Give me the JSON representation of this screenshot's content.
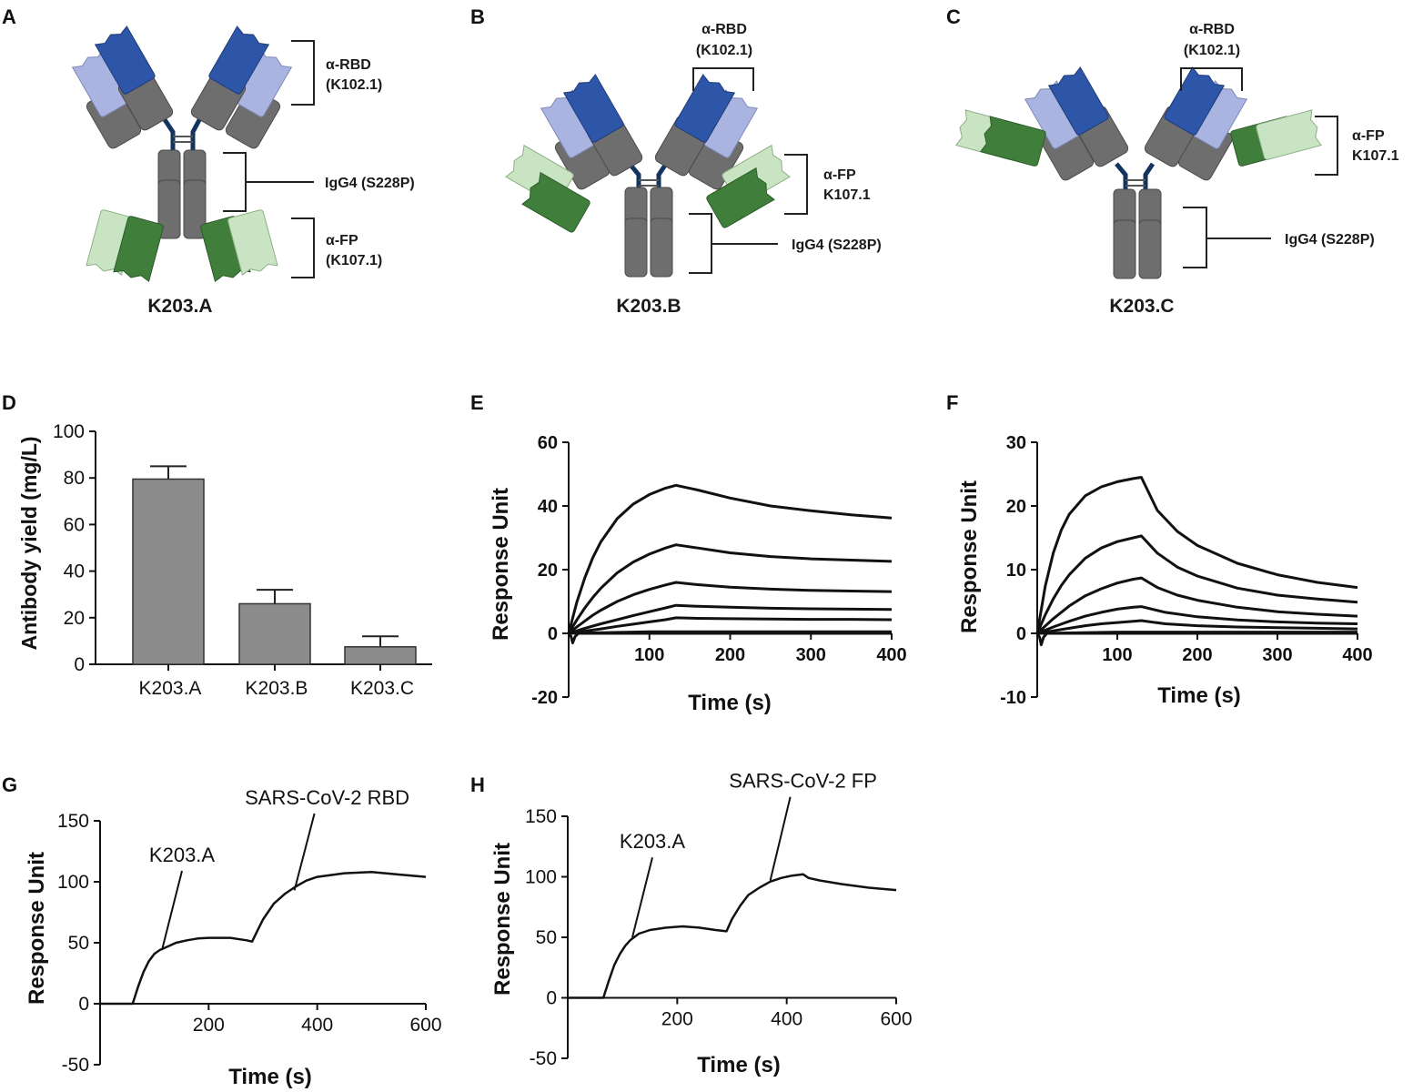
{
  "panels": {
    "A": {
      "letter": "A",
      "name": "K203.A",
      "rbd_label_1": "α-RBD",
      "rbd_label_2": "(K102.1)",
      "fc_label": "IgG4 (S228P)",
      "fp_label_1": "α-FP",
      "fp_label_2": "(K107.1)"
    },
    "B": {
      "letter": "B",
      "name": "K203.B",
      "rbd_label_1": "α-RBD",
      "rbd_label_2": "(K102.1)",
      "fc_label": "IgG4 (S228P)",
      "fp_label_1": "α-FP",
      "fp_label_2": "K107.1"
    },
    "C": {
      "letter": "C",
      "name": "K203.C",
      "rbd_label_1": "α-RBD",
      "rbd_label_2": "(K102.1)",
      "fc_label": "IgG4 (S228P)",
      "fp_label_1": "α-FP",
      "fp_label_2": "K107.1"
    },
    "D": {
      "letter": "D"
    },
    "E": {
      "letter": "E"
    },
    "F": {
      "letter": "F"
    },
    "G": {
      "letter": "G"
    },
    "H": {
      "letter": "H"
    }
  },
  "colors": {
    "vh_rbd": "#2e56a8",
    "vl_rbd": "#a9b4e0",
    "vh_fp": "#3f7f3b",
    "vl_fp": "#c9e4c2",
    "constant": "#6e6e6e",
    "hinge": "#13345e",
    "bar": "#8c8c8c",
    "line": "#111111"
  },
  "chart_data": [
    {
      "panel": "D",
      "type": "bar",
      "categories": [
        "K203.A",
        "K203.B",
        "K203.C"
      ],
      "values": [
        79.5,
        26,
        7.5
      ],
      "errors": [
        5.5,
        6,
        4.5
      ],
      "ylabel": "Antibody yield (mg/L)",
      "xlabel": "",
      "ylim": [
        0,
        100
      ],
      "yticks": [
        "0",
        "20",
        "40",
        "60",
        "80",
        "100"
      ]
    },
    {
      "panel": "E",
      "type": "line",
      "xlabel": "Time (s)",
      "ylabel": "Response Unit",
      "xlim": [
        0,
        400
      ],
      "ylim": [
        -20,
        60
      ],
      "xticks": [
        "100",
        "200",
        "300",
        "400"
      ],
      "yticks": [
        "-20",
        "0",
        "20",
        "40",
        "60"
      ],
      "series": [
        {
          "x": [
            0,
            10,
            20,
            30,
            40,
            60,
            80,
            100,
            120,
            133,
            160,
            200,
            250,
            300,
            350,
            400
          ],
          "y": [
            0,
            9.7,
            17.5,
            23.8,
            28.8,
            36,
            40.6,
            43.6,
            45.6,
            46.5,
            45,
            42.5,
            40,
            38.5,
            37.2,
            36.2
          ]
        },
        {
          "x": [
            0,
            10,
            20,
            30,
            40,
            60,
            80,
            100,
            120,
            133,
            160,
            200,
            250,
            300,
            350,
            400
          ],
          "y": [
            0,
            4.2,
            8,
            11.3,
            14.2,
            19,
            22.4,
            24.9,
            26.8,
            27.8,
            26.8,
            25.3,
            24.1,
            23.4,
            23,
            22.6
          ]
        },
        {
          "x": [
            0,
            10,
            20,
            30,
            40,
            60,
            80,
            100,
            120,
            133,
            160,
            200,
            250,
            300,
            350,
            400
          ],
          "y": [
            0,
            2,
            3.9,
            5.7,
            7.3,
            10,
            12.1,
            13.8,
            15.2,
            16,
            15.3,
            14.5,
            13.9,
            13.5,
            13.3,
            13.1
          ]
        },
        {
          "x": [
            0,
            20,
            40,
            60,
            80,
            100,
            120,
            133,
            160,
            200,
            250,
            300,
            350,
            400
          ],
          "y": [
            0,
            1.6,
            3,
            4.3,
            5.6,
            6.8,
            8,
            8.8,
            8.5,
            8.2,
            7.9,
            7.7,
            7.6,
            7.5
          ]
        },
        {
          "x": [
            0,
            20,
            40,
            60,
            80,
            100,
            120,
            133,
            160,
            200,
            250,
            300,
            350,
            400
          ],
          "y": [
            0,
            0.7,
            1.4,
            2.2,
            2.9,
            3.6,
            4.3,
            4.9,
            4.7,
            4.6,
            4.5,
            4.4,
            4.4,
            4.3
          ]
        },
        {
          "x": [
            0,
            100,
            200,
            300,
            400
          ],
          "y": [
            0,
            0.5,
            0.5,
            0.5,
            0.5
          ]
        },
        {
          "x": [
            0,
            3,
            5,
            8,
            12,
            400
          ],
          "y": [
            0,
            -1,
            -3,
            -1,
            0,
            0
          ]
        }
      ]
    },
    {
      "panel": "F",
      "type": "line",
      "xlabel": "Time (s)",
      "ylabel": "Response Unit",
      "xlim": [
        0,
        400
      ],
      "ylim": [
        -10,
        30
      ],
      "xticks": [
        "100",
        "200",
        "300",
        "400"
      ],
      "yticks": [
        "-10",
        "0",
        "10",
        "20",
        "30"
      ],
      "series": [
        {
          "x": [
            0,
            10,
            20,
            30,
            40,
            60,
            80,
            100,
            120,
            130,
            150,
            175,
            200,
            250,
            300,
            350,
            400
          ],
          "y": [
            0,
            7.4,
            12.6,
            16.2,
            18.7,
            21.6,
            23,
            23.8,
            24.3,
            24.5,
            19.3,
            16,
            13.8,
            11,
            9.2,
            8,
            7.2
          ]
        },
        {
          "x": [
            0,
            10,
            20,
            30,
            40,
            60,
            80,
            100,
            120,
            130,
            150,
            175,
            200,
            250,
            300,
            350,
            400
          ],
          "y": [
            0,
            2.9,
            5.4,
            7.5,
            9.2,
            11.8,
            13.4,
            14.4,
            15,
            15.3,
            12.6,
            10.4,
            9,
            7.1,
            6,
            5.4,
            4.9
          ]
        },
        {
          "x": [
            0,
            20,
            40,
            60,
            80,
            100,
            120,
            130,
            150,
            175,
            200,
            250,
            300,
            350,
            400
          ],
          "y": [
            0,
            2.3,
            4.3,
            5.9,
            7,
            7.9,
            8.5,
            8.7,
            7.2,
            6,
            5.2,
            4.1,
            3.4,
            3,
            2.7
          ]
        },
        {
          "x": [
            0,
            20,
            40,
            60,
            80,
            100,
            120,
            130,
            160,
            200,
            250,
            300,
            350,
            400
          ],
          "y": [
            0,
            1,
            1.9,
            2.7,
            3.3,
            3.8,
            4.1,
            4.2,
            3.3,
            2.6,
            2.1,
            1.8,
            1.6,
            1.5
          ]
        },
        {
          "x": [
            0,
            20,
            40,
            60,
            80,
            100,
            120,
            130,
            160,
            200,
            250,
            300,
            350,
            400
          ],
          "y": [
            0,
            0.4,
            0.8,
            1.2,
            1.5,
            1.7,
            1.9,
            2,
            1.5,
            1.2,
            1,
            0.9,
            0.8,
            0.7
          ]
        },
        {
          "x": [
            0,
            100,
            200,
            300,
            400
          ],
          "y": [
            0,
            0.2,
            0.2,
            0.2,
            0.2
          ]
        },
        {
          "x": [
            0,
            3,
            5,
            8,
            12,
            400
          ],
          "y": [
            0,
            -0.6,
            -1.8,
            -0.6,
            0,
            0
          ]
        }
      ]
    },
    {
      "panel": "G",
      "type": "line",
      "xlabel": "Time (s)",
      "ylabel": "Response Unit",
      "xlim": [
        0,
        600
      ],
      "ylim": [
        -50,
        150
      ],
      "xticks": [
        "200",
        "400",
        "600"
      ],
      "yticks": [
        "-50",
        "0",
        "50",
        "100",
        "150"
      ],
      "annotations": [
        {
          "text": "K203.A",
          "x": 114,
          "y": 44,
          "label_y": 103
        },
        {
          "text": "SARS-CoV-2  RBD",
          "x": 358,
          "y": 93,
          "label_y": 150
        }
      ],
      "series": [
        {
          "x": [
            0,
            60,
            70,
            80,
            90,
            100,
            110,
            120,
            140,
            160,
            180,
            200,
            240,
            270,
            280,
            290,
            300,
            320,
            340,
            360,
            380,
            400,
            450,
            500,
            550,
            600
          ],
          "y": [
            0,
            0,
            14,
            26,
            35,
            41,
            44,
            46,
            50,
            52,
            53.5,
            54,
            54,
            52,
            51,
            60,
            69,
            82,
            90,
            96,
            101,
            104,
            107,
            108,
            106,
            104
          ]
        }
      ]
    },
    {
      "panel": "H",
      "type": "line",
      "xlabel": "Time (s)",
      "ylabel": "Response Unit",
      "xlim": [
        0,
        600
      ],
      "ylim": [
        -50,
        150
      ],
      "xticks": [
        "200",
        "400",
        "600"
      ],
      "yticks": [
        "-50",
        "0",
        "50",
        "100",
        "150"
      ],
      "annotations": [
        {
          "text": "K203.A",
          "x": 118,
          "y": 50,
          "label_y": 110
        },
        {
          "text": "SARS-CoV-2  FP",
          "x": 370,
          "y": 97,
          "label_y": 160
        }
      ],
      "series": [
        {
          "x": [
            0,
            65,
            75,
            85,
            95,
            105,
            115,
            130,
            150,
            180,
            210,
            240,
            270,
            290,
            300,
            315,
            330,
            350,
            370,
            390,
            410,
            430,
            440,
            460,
            500,
            550,
            600
          ],
          "y": [
            0,
            0,
            14,
            27,
            36,
            43,
            48,
            53,
            56,
            58,
            59,
            58,
            56,
            55,
            65,
            76,
            85,
            91,
            96,
            99,
            101,
            102,
            99,
            97,
            94,
            91,
            89
          ]
        }
      ]
    }
  ]
}
